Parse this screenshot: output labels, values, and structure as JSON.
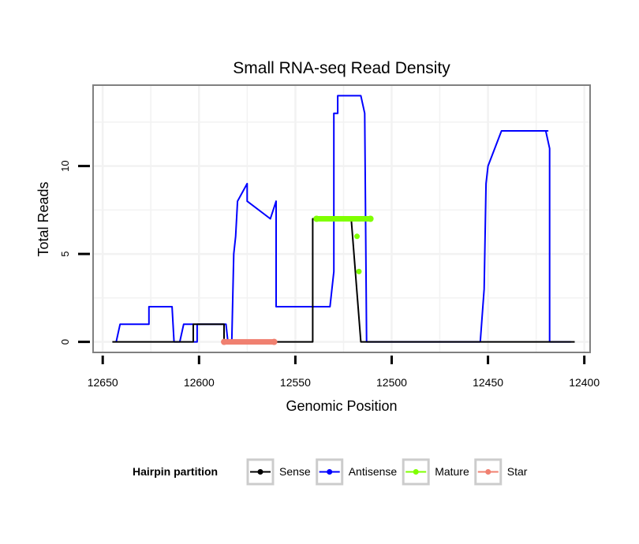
{
  "chart_data": {
    "type": "line",
    "title": "Small RNA-seq Read Density",
    "xlabel": "Genomic Position",
    "ylabel": "Total Reads",
    "xlim": [
      12655,
      12397
    ],
    "ylim": [
      -0.6,
      14.6
    ],
    "x_reversed": true,
    "x_ticks": [
      12650,
      12600,
      12550,
      12500,
      12450,
      12400
    ],
    "y_ticks": [
      0,
      5,
      10
    ],
    "grid": true,
    "legend": {
      "title": "Hairpin partition",
      "position": "bottom",
      "entries": [
        "Sense",
        "Antisense",
        "Mature",
        "Star"
      ]
    },
    "series": [
      {
        "name": "Sense",
        "color": "#000000",
        "kind": "line",
        "x": [
          12645,
          12603,
          12603,
          12587,
          12587,
          12541,
          12541,
          12536,
          12534,
          12521,
          12516,
          12490,
          12405
        ],
        "y": [
          0,
          0,
          1,
          1,
          0,
          0,
          7,
          7,
          7,
          7,
          0,
          0,
          0
        ]
      },
      {
        "name": "Antisense",
        "color": "#0000ff",
        "kind": "line",
        "x": [
          12643,
          12641,
          12626,
          12626,
          12614,
          12613,
          12610,
          12608,
          12606,
          12603,
          12603,
          12601,
          12601,
          12586,
          12585,
          12583,
          12582,
          12581,
          12580,
          12575,
          12575,
          12563,
          12560,
          12560,
          12537,
          12536,
          12532,
          12530,
          12530,
          12528,
          12528,
          12516,
          12514,
          12513,
          12511,
          12454,
          12452,
          12451,
          12450,
          12443,
          12438,
          12419,
          12420,
          12418,
          12418,
          12407
        ],
        "y": [
          0,
          1,
          1,
          2,
          2,
          0,
          0,
          1,
          1,
          1,
          0,
          0,
          1,
          1,
          0,
          0,
          5,
          6,
          8,
          9,
          8,
          7,
          8,
          2,
          2,
          2,
          2,
          4,
          13,
          13,
          14,
          14,
          13,
          0,
          0,
          0,
          3,
          9,
          10,
          12,
          12,
          12,
          12,
          11,
          0,
          0
        ]
      },
      {
        "name": "Mature",
        "color": "#7fff00",
        "kind": "line",
        "x": [
          12539,
          12511
        ],
        "y": [
          7,
          7
        ]
      },
      {
        "name": "Mature",
        "color": "#7fff00",
        "kind": "points",
        "x": [
          12518,
          12517
        ],
        "y": [
          6,
          4
        ]
      },
      {
        "name": "Star",
        "color": "#f08070",
        "kind": "line",
        "x": [
          12587,
          12561
        ],
        "y": [
          0,
          0
        ]
      }
    ]
  }
}
